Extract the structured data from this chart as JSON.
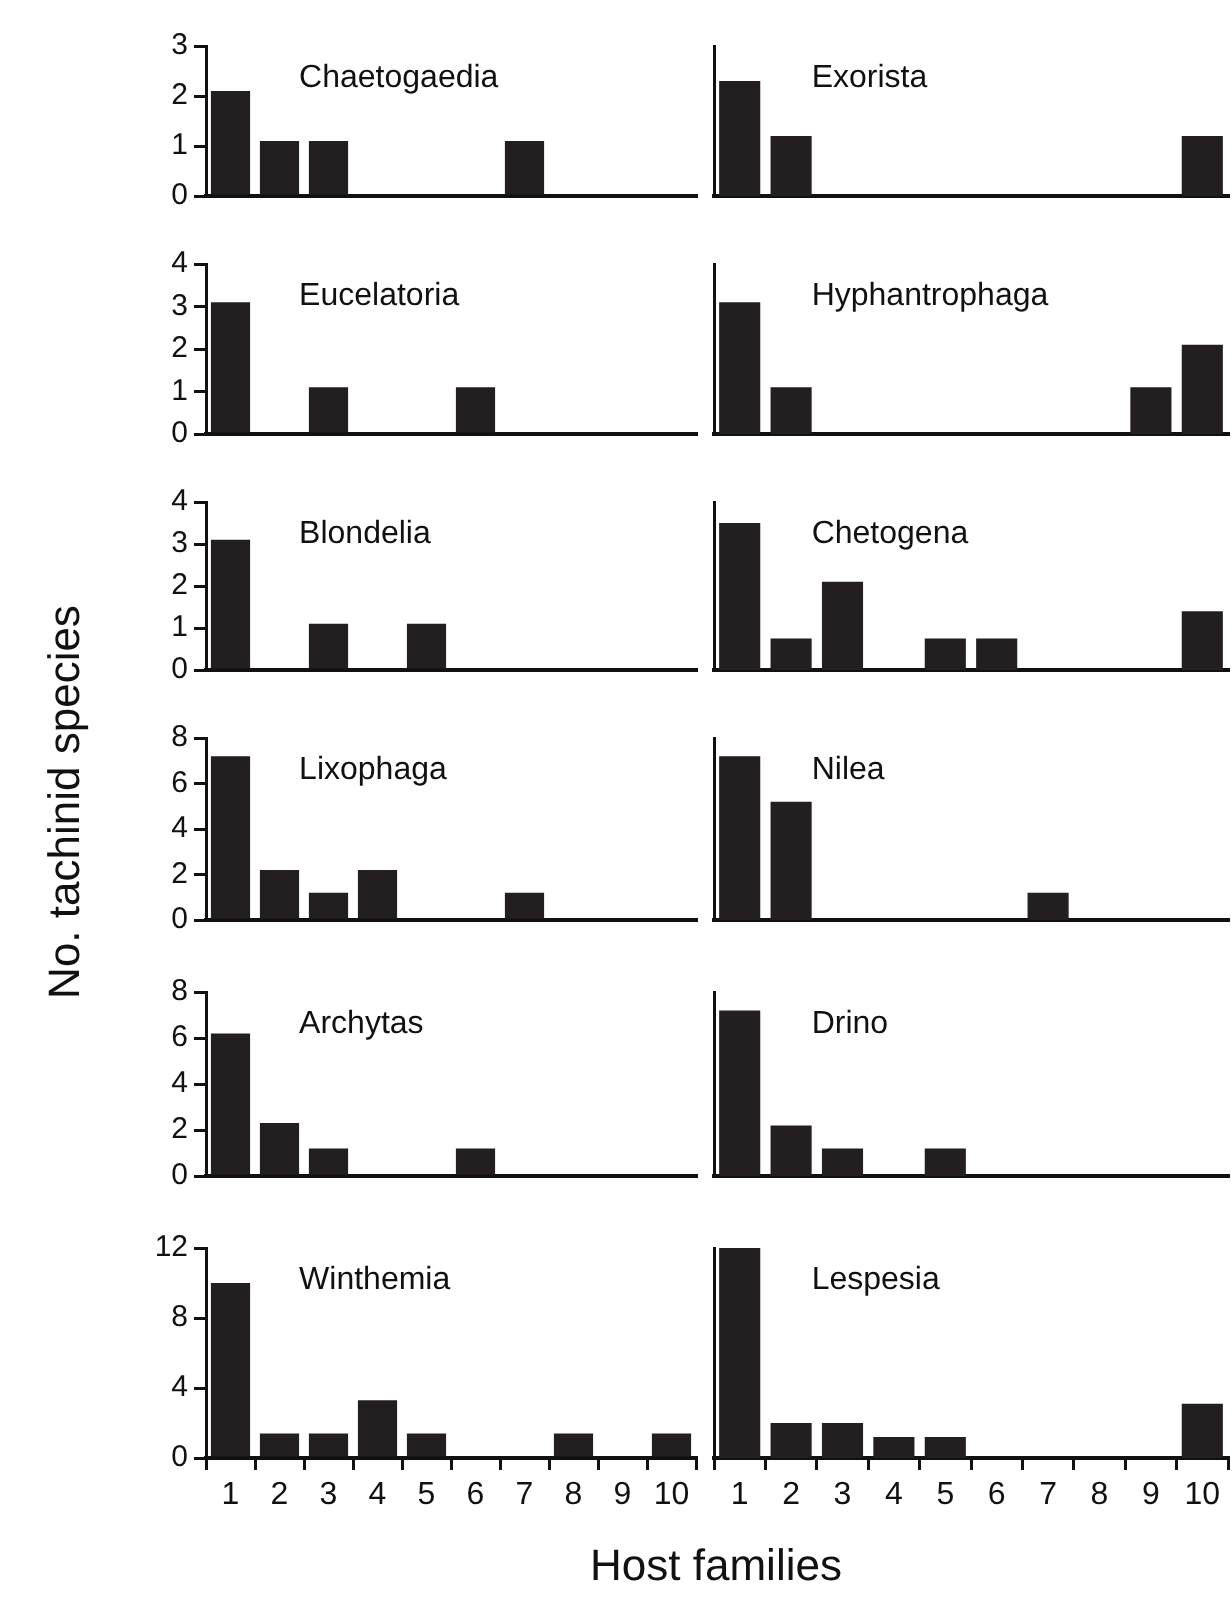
{
  "chart_data": [
    {
      "type": "bar",
      "title": "Chaetogaedia",
      "categories": [
        "1",
        "2",
        "3",
        "4",
        "5",
        "6",
        "7",
        "8",
        "9",
        "10"
      ],
      "values": [
        2.1,
        1.1,
        1.1,
        0,
        0,
        0,
        1.1,
        0,
        0,
        0
      ],
      "color": "#231f20",
      "ylim": [
        0,
        3
      ],
      "yticks": [
        0,
        1,
        2,
        3
      ],
      "tick_labels": "y"
    },
    {
      "type": "bar",
      "title": "Exorista",
      "categories": [
        "1",
        "2",
        "3",
        "4",
        "5",
        "6",
        "7",
        "8",
        "9",
        "10"
      ],
      "values": [
        2.3,
        1.2,
        0,
        0,
        0,
        0,
        0,
        0,
        0,
        1.2
      ],
      "color": "#231f20",
      "ylim": [
        0,
        3
      ],
      "tick_labels": false
    },
    {
      "type": "bar",
      "title": "Eucelatoria",
      "categories": [
        "1",
        "2",
        "3",
        "4",
        "5",
        "6",
        "7",
        "8",
        "9",
        "10"
      ],
      "values": [
        3.1,
        0,
        1.1,
        0,
        0,
        1.1,
        0,
        0,
        0,
        0
      ],
      "color": "#231f20",
      "ylim": [
        0,
        4
      ],
      "yticks": [
        0,
        1,
        2,
        3,
        4
      ],
      "tick_labels": "y"
    },
    {
      "type": "bar",
      "title": "Hyphantrophaga",
      "categories": [
        "1",
        "2",
        "3",
        "4",
        "5",
        "6",
        "7",
        "8",
        "9",
        "10"
      ],
      "values": [
        3.1,
        1.1,
        0,
        0,
        0,
        0,
        0,
        0,
        1.1,
        2.1
      ],
      "color": "#231f20",
      "ylim": [
        0,
        4
      ],
      "tick_labels": false
    },
    {
      "type": "bar",
      "title": "Blondelia",
      "categories": [
        "1",
        "2",
        "3",
        "4",
        "5",
        "6",
        "7",
        "8",
        "9",
        "10"
      ],
      "values": [
        3.1,
        0,
        1.1,
        0,
        1.1,
        0,
        0,
        0,
        0,
        0
      ],
      "color": "#231f20",
      "ylim": [
        0,
        4
      ],
      "yticks": [
        0,
        1,
        2,
        3,
        4
      ],
      "tick_labels": "y"
    },
    {
      "type": "bar",
      "title": "Chetogena",
      "categories": [
        "1",
        "2",
        "3",
        "4",
        "5",
        "6",
        "7",
        "8",
        "9",
        "10"
      ],
      "values": [
        3.5,
        0.75,
        2.1,
        0,
        0.75,
        0.75,
        0,
        0,
        0,
        1.4
      ],
      "color": "#231f20",
      "ylim": [
        0,
        4
      ],
      "tick_labels": false
    },
    {
      "type": "bar",
      "title": "Lixophaga",
      "ylabel": "No. tachinid species",
      "categories": [
        "1",
        "2",
        "3",
        "4",
        "5",
        "6",
        "7",
        "8",
        "9",
        "10"
      ],
      "values": [
        7.2,
        2.2,
        1.2,
        2.2,
        0,
        0,
        1.2,
        0,
        0,
        0
      ],
      "color": "#231f20",
      "ylim": [
        0,
        8
      ],
      "yticks": [
        0,
        2,
        4,
        6,
        8
      ],
      "tick_labels": "y"
    },
    {
      "type": "bar",
      "title": "Nilea",
      "categories": [
        "1",
        "2",
        "3",
        "4",
        "5",
        "6",
        "7",
        "8",
        "9",
        "10"
      ],
      "values": [
        7.2,
        5.2,
        0,
        0,
        0,
        0,
        1.2,
        0,
        0,
        0
      ],
      "color": "#231f20",
      "ylim": [
        0,
        8
      ],
      "tick_labels": false
    },
    {
      "type": "bar",
      "title": "Archytas",
      "categories": [
        "1",
        "2",
        "3",
        "4",
        "5",
        "6",
        "7",
        "8",
        "9",
        "10"
      ],
      "values": [
        6.2,
        2.3,
        1.2,
        0,
        0,
        1.2,
        0,
        0,
        0,
        0
      ],
      "color": "#231f20",
      "ylim": [
        0,
        8
      ],
      "yticks": [
        0,
        2,
        4,
        6,
        8
      ],
      "tick_labels": "y"
    },
    {
      "type": "bar",
      "title": "Drino",
      "categories": [
        "1",
        "2",
        "3",
        "4",
        "5",
        "6",
        "7",
        "8",
        "9",
        "10"
      ],
      "values": [
        7.2,
        2.2,
        1.2,
        0,
        1.2,
        0,
        0,
        0,
        0,
        0
      ],
      "color": "#231f20",
      "ylim": [
        0,
        8
      ],
      "tick_labels": false
    },
    {
      "type": "bar",
      "title": "Winthemia",
      "xlabel": "Host families",
      "categories": [
        "1",
        "2",
        "3",
        "4",
        "5",
        "6",
        "7",
        "8",
        "9",
        "10"
      ],
      "values": [
        10,
        1.4,
        1.4,
        3.3,
        1.4,
        0,
        0,
        1.4,
        0,
        1.4
      ],
      "color": "#231f20",
      "ylim": [
        0,
        12
      ],
      "yticks": [
        0,
        4,
        8,
        12
      ]
    },
    {
      "type": "bar",
      "title": "Lespesia",
      "categories": [
        "1",
        "2",
        "3",
        "4",
        "5",
        "6",
        "7",
        "8",
        "9",
        "10"
      ],
      "values": [
        12,
        2,
        2,
        1.2,
        1.2,
        0,
        0,
        0,
        0,
        3.1
      ],
      "color": "#231f20",
      "ylim": [
        0,
        12
      ],
      "tick_labels": "x"
    }
  ]
}
